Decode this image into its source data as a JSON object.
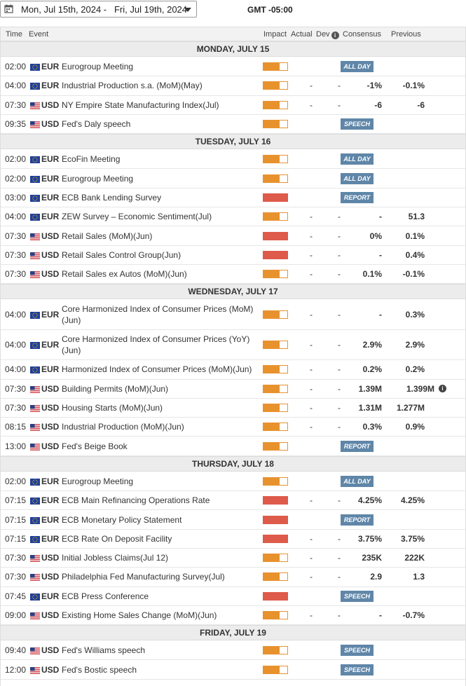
{
  "toolbar": {
    "date_range": "Mon, Jul 15th, 2024 -   Fri, Jul 19th, 2024",
    "timezone": "GMT -05:00"
  },
  "columns": {
    "time": "Time",
    "event": "Event",
    "impact": "Impact",
    "actual": "Actual",
    "dev": "Dev",
    "consensus": "Consensus",
    "previous": "Previous"
  },
  "colors": {
    "impact_medium": "#e8922e",
    "impact_high": "#de5a4a",
    "badge": "#5f86a8"
  },
  "days": [
    {
      "label": "MONDAY, JULY 15",
      "events": [
        {
          "time": "02:00",
          "currency": "EUR",
          "flag": "eu-flag",
          "name": "Eurogroup Meeting",
          "impact": "medium",
          "actual": "",
          "dev": "",
          "consensus": "",
          "previous": "",
          "badge": "ALL DAY"
        },
        {
          "time": "04:00",
          "currency": "EUR",
          "flag": "eu-flag",
          "name": "Industrial Production s.a. (MoM)(May)",
          "impact": "medium",
          "actual": "-",
          "dev": "-",
          "consensus": "-1%",
          "previous": "-0.1%",
          "badge": ""
        },
        {
          "time": "07:30",
          "currency": "USD",
          "flag": "us-flag",
          "name": "NY Empire State Manufacturing Index(Jul)",
          "impact": "medium",
          "actual": "-",
          "dev": "-",
          "consensus": "-6",
          "previous": "-6",
          "badge": ""
        },
        {
          "time": "09:35",
          "currency": "USD",
          "flag": "us-flag",
          "name": "Fed's Daly speech",
          "impact": "medium",
          "actual": "",
          "dev": "",
          "consensus": "",
          "previous": "",
          "badge": "SPEECH"
        }
      ]
    },
    {
      "label": "TUESDAY, JULY 16",
      "events": [
        {
          "time": "02:00",
          "currency": "EUR",
          "flag": "eu-flag",
          "name": "EcoFin Meeting",
          "impact": "medium",
          "actual": "",
          "dev": "",
          "consensus": "",
          "previous": "",
          "badge": "ALL DAY"
        },
        {
          "time": "02:00",
          "currency": "EUR",
          "flag": "eu-flag",
          "name": "Eurogroup Meeting",
          "impact": "medium",
          "actual": "",
          "dev": "",
          "consensus": "",
          "previous": "",
          "badge": "ALL DAY"
        },
        {
          "time": "03:00",
          "currency": "EUR",
          "flag": "eu-flag",
          "name": "ECB Bank Lending Survey",
          "impact": "high",
          "actual": "",
          "dev": "",
          "consensus": "",
          "previous": "",
          "badge": "REPORT"
        },
        {
          "time": "04:00",
          "currency": "EUR",
          "flag": "eu-flag",
          "name": "ZEW Survey – Economic Sentiment(Jul)",
          "impact": "medium",
          "actual": "-",
          "dev": "-",
          "consensus": "-",
          "previous": "51.3",
          "badge": ""
        },
        {
          "time": "07:30",
          "currency": "USD",
          "flag": "us-flag",
          "name": "Retail Sales (MoM)(Jun)",
          "impact": "high",
          "actual": "-",
          "dev": "-",
          "consensus": "0%",
          "previous": "0.1%",
          "badge": ""
        },
        {
          "time": "07:30",
          "currency": "USD",
          "flag": "us-flag",
          "name": "Retail Sales Control Group(Jun)",
          "impact": "high",
          "actual": "-",
          "dev": "-",
          "consensus": "-",
          "previous": "0.4%",
          "badge": ""
        },
        {
          "time": "07:30",
          "currency": "USD",
          "flag": "us-flag",
          "name": "Retail Sales ex Autos (MoM)(Jun)",
          "impact": "medium",
          "actual": "-",
          "dev": "-",
          "consensus": "0.1%",
          "previous": "-0.1%",
          "badge": ""
        }
      ]
    },
    {
      "label": "WEDNESDAY, JULY 17",
      "events": [
        {
          "time": "04:00",
          "currency": "EUR",
          "flag": "eu-flag",
          "name": "Core Harmonized Index of Consumer Prices (MoM)(Jun)",
          "impact": "medium",
          "actual": "-",
          "dev": "-",
          "consensus": "-",
          "previous": "0.3%",
          "badge": "",
          "tall": true
        },
        {
          "time": "04:00",
          "currency": "EUR",
          "flag": "eu-flag",
          "name": "Core Harmonized Index of Consumer Prices (YoY)(Jun)",
          "impact": "medium",
          "actual": "-",
          "dev": "-",
          "consensus": "2.9%",
          "previous": "2.9%",
          "badge": "",
          "tall": true
        },
        {
          "time": "04:00",
          "currency": "EUR",
          "flag": "eu-flag",
          "name": "Harmonized Index of Consumer Prices (MoM)(Jun)",
          "impact": "medium",
          "actual": "-",
          "dev": "-",
          "consensus": "0.2%",
          "previous": "0.2%",
          "badge": ""
        },
        {
          "time": "07:30",
          "currency": "USD",
          "flag": "us-flag",
          "name": "Building Permits (MoM)(Jun)",
          "impact": "medium",
          "actual": "-",
          "dev": "-",
          "consensus": "1.39M",
          "previous": "1.399M",
          "badge": "",
          "prev_info": true
        },
        {
          "time": "07:30",
          "currency": "USD",
          "flag": "us-flag",
          "name": "Housing Starts (MoM)(Jun)",
          "impact": "medium",
          "actual": "-",
          "dev": "-",
          "consensus": "1.31M",
          "previous": "1.277M",
          "badge": ""
        },
        {
          "time": "08:15",
          "currency": "USD",
          "flag": "us-flag",
          "name": "Industrial Production (MoM)(Jun)",
          "impact": "medium",
          "actual": "-",
          "dev": "-",
          "consensus": "0.3%",
          "previous": "0.9%",
          "badge": ""
        },
        {
          "time": "13:00",
          "currency": "USD",
          "flag": "us-flag",
          "name": "Fed's Beige Book",
          "impact": "medium",
          "actual": "",
          "dev": "",
          "consensus": "",
          "previous": "",
          "badge": "REPORT"
        }
      ]
    },
    {
      "label": "THURSDAY, JULY 18",
      "events": [
        {
          "time": "02:00",
          "currency": "EUR",
          "flag": "eu-flag",
          "name": "Eurogroup Meeting",
          "impact": "medium",
          "actual": "",
          "dev": "",
          "consensus": "",
          "previous": "",
          "badge": "ALL DAY"
        },
        {
          "time": "07:15",
          "currency": "EUR",
          "flag": "eu-flag",
          "name": "ECB Main Refinancing Operations Rate",
          "impact": "high",
          "actual": "-",
          "dev": "-",
          "consensus": "4.25%",
          "previous": "4.25%",
          "badge": ""
        },
        {
          "time": "07:15",
          "currency": "EUR",
          "flag": "eu-flag",
          "name": "ECB Monetary Policy Statement",
          "impact": "high",
          "actual": "",
          "dev": "",
          "consensus": "",
          "previous": "",
          "badge": "REPORT"
        },
        {
          "time": "07:15",
          "currency": "EUR",
          "flag": "eu-flag",
          "name": "ECB Rate On Deposit Facility",
          "impact": "high",
          "actual": "-",
          "dev": "-",
          "consensus": "3.75%",
          "previous": "3.75%",
          "badge": ""
        },
        {
          "time": "07:30",
          "currency": "USD",
          "flag": "us-flag",
          "name": "Initial Jobless Claims(Jul 12)",
          "impact": "medium",
          "actual": "-",
          "dev": "-",
          "consensus": "235K",
          "previous": "222K",
          "badge": ""
        },
        {
          "time": "07:30",
          "currency": "USD",
          "flag": "us-flag",
          "name": "Philadelphia Fed Manufacturing Survey(Jul)",
          "impact": "medium",
          "actual": "-",
          "dev": "-",
          "consensus": "2.9",
          "previous": "1.3",
          "badge": ""
        },
        {
          "time": "07:45",
          "currency": "EUR",
          "flag": "eu-flag",
          "name": "ECB Press Conference",
          "impact": "high",
          "actual": "",
          "dev": "",
          "consensus": "",
          "previous": "",
          "badge": "SPEECH"
        },
        {
          "time": "09:00",
          "currency": "USD",
          "flag": "us-flag",
          "name": "Existing Home Sales Change (MoM)(Jun)",
          "impact": "medium",
          "actual": "-",
          "dev": "-",
          "consensus": "-",
          "previous": "-0.7%",
          "badge": ""
        }
      ]
    },
    {
      "label": "FRIDAY, JULY 19",
      "events": [
        {
          "time": "09:40",
          "currency": "USD",
          "flag": "us-flag",
          "name": "Fed's Williams speech",
          "impact": "medium",
          "actual": "",
          "dev": "",
          "consensus": "",
          "previous": "",
          "badge": "SPEECH"
        },
        {
          "time": "12:00",
          "currency": "USD",
          "flag": "us-flag",
          "name": "Fed's Bostic speech",
          "impact": "medium",
          "actual": "",
          "dev": "",
          "consensus": "",
          "previous": "",
          "badge": "SPEECH"
        }
      ]
    }
  ]
}
